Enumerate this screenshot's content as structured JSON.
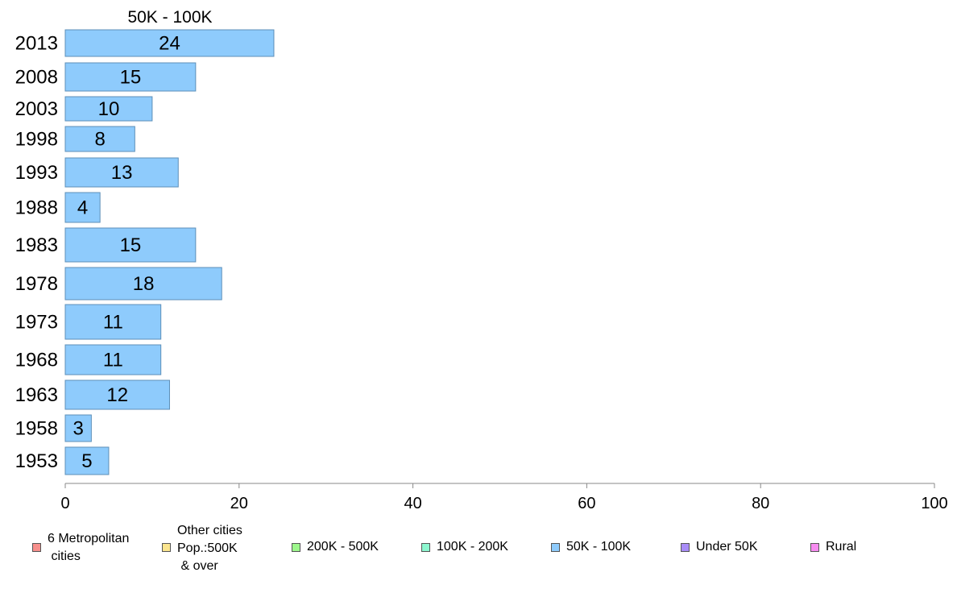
{
  "chart_data": {
    "type": "bar",
    "orientation": "horizontal",
    "title": "50K - 100K",
    "categories": [
      "2013",
      "2008",
      "2003",
      "1998",
      "1993",
      "1988",
      "1983",
      "1978",
      "1973",
      "1968",
      "1963",
      "1958",
      "1953"
    ],
    "values": [
      24,
      15,
      10,
      8,
      13,
      4,
      15,
      18,
      11,
      11,
      12,
      3,
      5
    ],
    "xlim": [
      0,
      100
    ],
    "xticks": [
      "0",
      "20",
      "40",
      "60",
      "80",
      "100"
    ],
    "xlabel": "",
    "ylabel": "",
    "grid": false,
    "bar_color": "#8ecbfc",
    "bar_border_color": "#5d8fb8",
    "legend": {
      "placement": "bottom",
      "items": [
        {
          "label": "6 Metropolitan\n cities",
          "color": "#f78f8c"
        },
        {
          "label": "Other cities\nPop.:500K\n & over",
          "color": "#fbe58e"
        },
        {
          "label": "200K - 500K",
          "color": "#9df78c"
        },
        {
          "label": "100K - 200K",
          "color": "#8cf7cf"
        },
        {
          "label": "50K - 100K",
          "color": "#8ecbfc"
        },
        {
          "label": "Under 50K",
          "color": "#a88cf7"
        },
        {
          "label": "Rural",
          "color": "#f78cf0"
        }
      ]
    }
  }
}
